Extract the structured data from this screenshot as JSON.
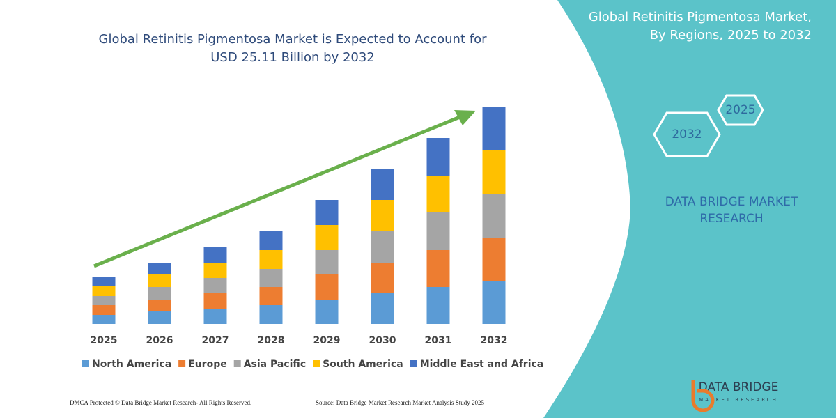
{
  "chart_data": {
    "type": "bar",
    "stacked": true,
    "title": "Global Retinitis Pigmentosa Market is Expected to Account for USD 25.11 Billion by 2032",
    "categories": [
      "2025",
      "2026",
      "2027",
      "2028",
      "2029",
      "2030",
      "2031",
      "2032"
    ],
    "series": [
      {
        "name": "North America",
        "color": "#5b9bd5",
        "values": [
          13,
          18,
          22,
          27,
          35,
          44,
          53,
          62
        ]
      },
      {
        "name": "Europe",
        "color": "#ed7d31",
        "values": [
          14,
          17,
          22,
          26,
          36,
          44,
          53,
          62
        ]
      },
      {
        "name": "Asia Pacific",
        "color": "#a5a5a5",
        "values": [
          13,
          18,
          22,
          26,
          35,
          45,
          54,
          63
        ]
      },
      {
        "name": "South America",
        "color": "#ffc000",
        "values": [
          14,
          18,
          22,
          27,
          36,
          45,
          53,
          62
        ]
      },
      {
        "name": "Middle East and Africa",
        "color": "#4472c4",
        "values": [
          13,
          17,
          23,
          27,
          36,
          44,
          54,
          62
        ]
      }
    ],
    "ylim": [
      0,
      320
    ]
  },
  "panel": {
    "title": "Global Retinitis Pigmentosa Market, By Regions, 2025 to 2032",
    "hex_start": "2025",
    "hex_end": "2032",
    "brand": "DATA BRIDGE MARKET RESEARCH",
    "logo": "DATA BRIDGE",
    "logo_sub": "MARKET RESEARCH"
  },
  "footer": {
    "left": "DMCA Protected © Data Bridge Market Research- All Rights Reserved.",
    "right": "Source: Data Bridge Market Research Market Analysis Study 2025"
  }
}
